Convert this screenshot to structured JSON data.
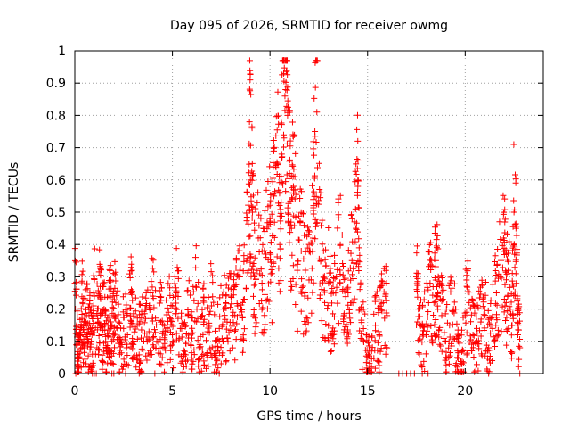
{
  "chart_data": {
    "type": "scatter",
    "title": "Day 095 of 2026, SRMTID for receiver owmg",
    "xlabel": "GPS time / hours",
    "ylabel": "SRMTID / TECUs",
    "xlim": [
      0,
      24
    ],
    "ylim": [
      0,
      1
    ],
    "xticks": [
      0,
      5,
      10,
      15,
      20
    ],
    "xtick_labels": [
      "0",
      "5",
      "10",
      "15",
      "20"
    ],
    "yticks": [
      0,
      0.1,
      0.2,
      0.3,
      0.4,
      0.5,
      0.6,
      0.7,
      0.8,
      0.9,
      1
    ],
    "ytick_labels": [
      "0",
      "0.1",
      "0.2",
      "0.3",
      "0.4",
      "0.5",
      "0.6",
      "0.7",
      "0.8",
      "0.9",
      "1"
    ],
    "grid": true,
    "marker": "+",
    "color": "#ff0000",
    "series": [
      {
        "name": "SRMTID",
        "x": [
          0.0,
          0.1,
          0.15,
          0.2,
          0.3,
          0.4,
          0.5,
          0.6,
          0.7,
          0.8,
          0.9,
          1.0,
          1.2,
          1.3,
          1.4,
          1.5,
          1.6,
          1.7,
          1.8,
          1.9,
          2.0,
          2.1,
          2.3,
          2.5,
          2.7,
          2.9,
          3.0,
          3.2,
          3.4,
          3.6,
          3.8,
          4.0,
          4.2,
          4.4,
          4.6,
          4.8,
          5.0,
          5.2,
          5.4,
          5.6,
          5.8,
          6.0,
          6.2,
          6.4,
          6.6,
          6.8,
          7.0,
          7.2,
          7.4,
          7.6,
          7.8,
          8.0,
          8.2,
          8.4,
          8.6,
          8.8,
          8.95,
          9.0,
          9.1,
          9.2,
          9.4,
          9.6,
          9.8,
          10.0,
          10.1,
          10.2,
          10.4,
          10.5,
          10.6,
          10.7,
          10.8,
          10.9,
          11.0,
          11.1,
          11.2,
          11.4,
          11.6,
          11.8,
          12.0,
          12.2,
          12.3,
          12.4,
          12.6,
          12.8,
          13.0,
          13.2,
          13.4,
          13.6,
          13.8,
          14.0,
          14.2,
          14.4,
          14.5,
          14.6,
          14.8,
          15.0,
          15.2,
          15.4,
          15.6,
          15.8,
          16.0,
          17.5,
          17.6,
          17.8,
          18.0,
          18.2,
          18.4,
          18.5,
          18.6,
          18.8,
          19.0,
          19.2,
          19.4,
          19.6,
          19.8,
          20.0,
          20.2,
          20.4,
          20.6,
          20.8,
          21.0,
          21.2,
          21.4,
          21.6,
          21.8,
          22.0,
          22.1,
          22.2,
          22.4,
          22.5,
          22.6,
          22.7,
          22.8
        ],
        "y": [
          0.28,
          0.15,
          0.05,
          0.02,
          0.12,
          0.22,
          0.08,
          0.18,
          0.1,
          0.14,
          0.06,
          0.24,
          0.16,
          0.27,
          0.12,
          0.2,
          0.08,
          0.15,
          0.24,
          0.1,
          0.18,
          0.22,
          0.06,
          0.14,
          0.12,
          0.26,
          0.09,
          0.15,
          0.11,
          0.2,
          0.13,
          0.24,
          0.1,
          0.16,
          0.08,
          0.19,
          0.12,
          0.25,
          0.14,
          0.06,
          0.18,
          0.11,
          0.27,
          0.09,
          0.16,
          0.13,
          0.21,
          0.05,
          0.14,
          0.2,
          0.16,
          0.24,
          0.18,
          0.3,
          0.22,
          0.35,
          0.78,
          0.6,
          0.5,
          0.3,
          0.42,
          0.26,
          0.36,
          0.48,
          0.31,
          0.55,
          0.65,
          0.4,
          0.68,
          0.93,
          0.88,
          0.8,
          0.62,
          0.45,
          0.58,
          0.32,
          0.38,
          0.25,
          0.29,
          0.42,
          0.75,
          0.81,
          0.35,
          0.22,
          0.28,
          0.12,
          0.3,
          0.4,
          0.18,
          0.25,
          0.35,
          0.45,
          0.58,
          0.2,
          0.1,
          0.05,
          0.02,
          0.15,
          0.12,
          0.22,
          0.18,
          0.3,
          0.2,
          0.15,
          0.12,
          0.28,
          0.22,
          0.35,
          0.25,
          0.18,
          0.1,
          0.15,
          0.2,
          0.05,
          0.03,
          0.18,
          0.22,
          0.12,
          0.1,
          0.16,
          0.2,
          0.08,
          0.14,
          0.25,
          0.3,
          0.38,
          0.22,
          0.32,
          0.15,
          0.5,
          0.45,
          0.12,
          0.08
        ],
        "zeros_x": [
          0.05,
          0.9,
          1.0,
          1.1,
          1.9,
          2.0,
          2.6,
          3.3,
          4.1,
          7.4,
          16.6,
          16.8,
          17.0,
          17.2,
          17.4,
          17.8,
          18.1,
          21.2,
          22.8
        ]
      }
    ]
  }
}
